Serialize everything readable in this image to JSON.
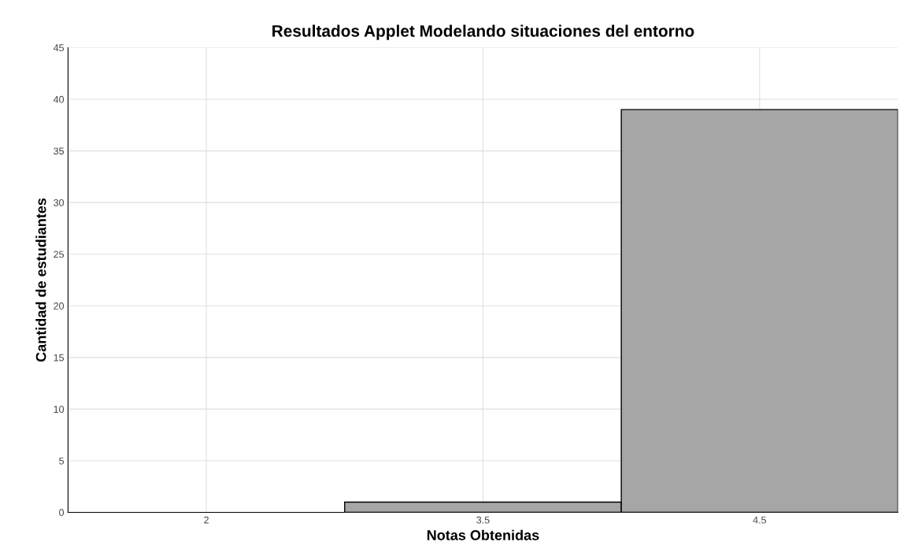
{
  "chart_data": {
    "type": "bar",
    "title": "Resultados Applet Modelando situaciones del entorno",
    "xlabel": "Notas Obtenidas",
    "ylabel": "Cantidad de estudiantes",
    "categories": [
      "2",
      "3.5",
      "4.5"
    ],
    "values": [
      0,
      1,
      39
    ],
    "color": "#a6a6a6",
    "ylim": [
      0,
      45
    ],
    "yticks": [
      0,
      5,
      10,
      15,
      20,
      25,
      30,
      35,
      40,
      45
    ],
    "grid": true
  }
}
